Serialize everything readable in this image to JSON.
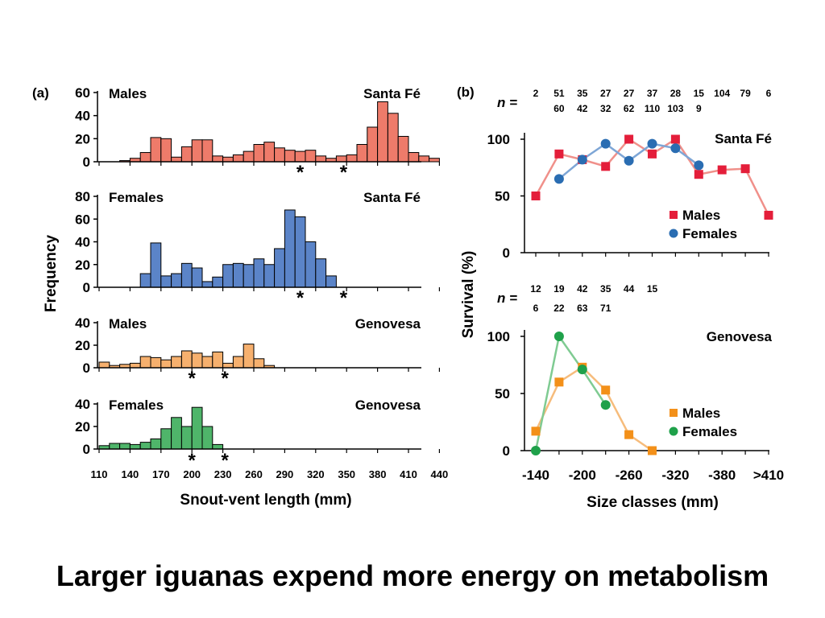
{
  "caption": "Larger iguanas expend more energy on metabolism",
  "chart_data": [
    {
      "panel": "(a)",
      "type": "bar",
      "xlabel": "Snout-vent length (mm)",
      "ylabel": "Frequency",
      "x_ticks": [
        "110",
        "140",
        "170",
        "200",
        "230",
        "260",
        "290",
        "320",
        "350",
        "380",
        "410",
        "440"
      ],
      "bin_start": 110,
      "bin_width": 10,
      "subplots": [
        {
          "left_label": "Males",
          "right_label": "Santa Fé",
          "color": "#ee7b6a",
          "ylim": [
            0,
            60
          ],
          "yticks": [
            "0",
            "20",
            "40",
            "60"
          ],
          "values": [
            0,
            0,
            1,
            3,
            8,
            21,
            20,
            4,
            13,
            19,
            19,
            5,
            4,
            6,
            9,
            15,
            17,
            12,
            10,
            9,
            10,
            5,
            3,
            5,
            6,
            15,
            30,
            52,
            42,
            22,
            8,
            5,
            3
          ],
          "markers": [
            305,
            347
          ]
        },
        {
          "left_label": "Females",
          "right_label": "Santa Fé",
          "color": "#5b84c8",
          "ylim": [
            0,
            80
          ],
          "yticks": [
            "0",
            "20",
            "40",
            "60",
            "80"
          ],
          "values": [
            0,
            0,
            0,
            0,
            12,
            39,
            10,
            12,
            21,
            17,
            5,
            9,
            20,
            21,
            20,
            25,
            20,
            34,
            68,
            62,
            40,
            25,
            10,
            0,
            0,
            0,
            0,
            0,
            0,
            0,
            0,
            0,
            0
          ],
          "markers": [
            305,
            347
          ]
        },
        {
          "left_label": "Males",
          "right_label": "Genovesa",
          "color": "#f6b06e",
          "ylim": [
            0,
            40
          ],
          "yticks": [
            "0",
            "20",
            "40"
          ],
          "values": [
            5,
            2,
            3,
            4,
            10,
            9,
            7,
            10,
            15,
            13,
            10,
            14,
            4,
            10,
            21,
            8,
            2,
            0,
            0,
            0,
            0,
            0,
            0,
            0,
            0,
            0,
            0,
            0,
            0,
            0,
            0,
            0,
            0
          ],
          "markers": [
            200,
            232
          ]
        },
        {
          "left_label": "Females",
          "right_label": "Genovesa",
          "color": "#4fb56a",
          "ylim": [
            0,
            40
          ],
          "yticks": [
            "0",
            "20",
            "40"
          ],
          "values": [
            3,
            5,
            5,
            4,
            6,
            9,
            18,
            28,
            20,
            37,
            20,
            4,
            0,
            0,
            0,
            0,
            0,
            0,
            0,
            0,
            0,
            0,
            0,
            0,
            0,
            0,
            0,
            0,
            0,
            0,
            0,
            0,
            0
          ],
          "markers": [
            200,
            232
          ]
        }
      ]
    },
    {
      "panel": "(b)",
      "type": "line",
      "xlabel": "Size classes (mm)",
      "ylabel": "Survival (%)",
      "x_ticks": [
        "-140",
        "-200",
        "-260",
        "-320",
        "-380",
        ">410"
      ],
      "x_tick_index": [
        0,
        2,
        4,
        6,
        8,
        10
      ],
      "subplots": [
        {
          "title": "Santa Fé",
          "ylim": [
            0,
            100
          ],
          "yticks": [
            "0",
            "50",
            "100"
          ],
          "n_label": "n =",
          "n_top": [
            "2",
            "51",
            "35",
            "27",
            "27",
            "37",
            "28",
            "15",
            "104",
            "79",
            "6"
          ],
          "n_bottom": [
            "",
            "60",
            "42",
            "32",
            "62",
            "110",
            "103",
            "9",
            "",
            "",
            ""
          ],
          "series": [
            {
              "name": "Males",
              "color": "#e41e3a",
              "line_color": "#f0908a",
              "marker": "square",
              "x": [
                0,
                1,
                2,
                3,
                4,
                5,
                6,
                7,
                8,
                9,
                10
              ],
              "values": [
                50,
                87,
                82,
                76,
                100,
                87,
                100,
                69,
                73,
                74,
                33
              ]
            },
            {
              "name": "Females",
              "color": "#2a6db2",
              "line_color": "#7ea6d6",
              "marker": "circle",
              "x": [
                1,
                2,
                3,
                4,
                5,
                6,
                7
              ],
              "values": [
                65,
                82,
                96,
                81,
                96,
                92,
                77
              ]
            }
          ]
        },
        {
          "title": "Genovesa",
          "ylim": [
            0,
            100
          ],
          "yticks": [
            "0",
            "50",
            "100"
          ],
          "n_label": "n =",
          "n_top": [
            "12",
            "19",
            "42",
            "35",
            "44",
            "15"
          ],
          "n_bottom": [
            "6",
            "22",
            "63",
            "71",
            "",
            ""
          ],
          "series": [
            {
              "name": "Males",
              "color": "#f39019",
              "line_color": "#f6bc7c",
              "marker": "square",
              "x": [
                0,
                1,
                2,
                3,
                4,
                5
              ],
              "values": [
                17,
                60,
                73,
                53,
                14,
                0
              ]
            },
            {
              "name": "Females",
              "color": "#1fa14a",
              "line_color": "#7fcb92",
              "marker": "circle",
              "x": [
                0,
                1,
                2,
                3
              ],
              "values": [
                0,
                100,
                71,
                40
              ]
            }
          ]
        }
      ]
    }
  ]
}
